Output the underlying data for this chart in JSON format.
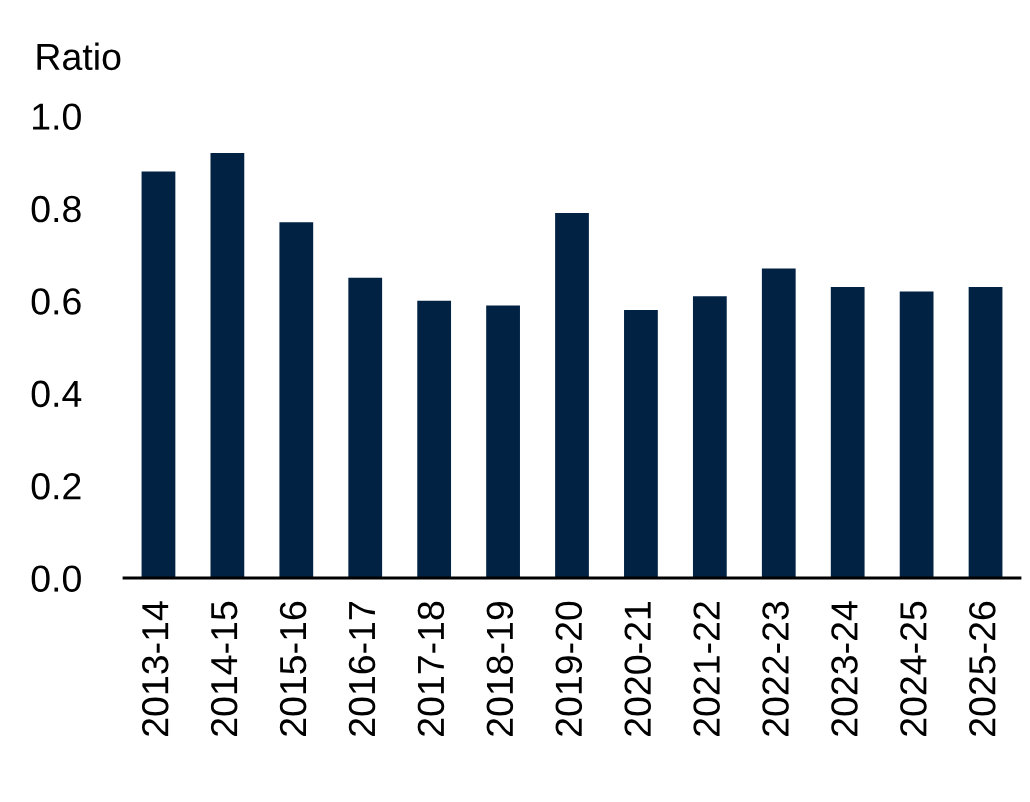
{
  "chart_data": {
    "type": "bar",
    "ylabel": "Ratio",
    "categories": [
      "2013-14",
      "2014-15",
      "2015-16",
      "2016-17",
      "2017-18",
      "2018-19",
      "2019-20",
      "2020-21",
      "2021-22",
      "2022-23",
      "2023-24",
      "2024-25",
      "2025-26"
    ],
    "values": [
      0.88,
      0.92,
      0.77,
      0.65,
      0.6,
      0.59,
      0.79,
      0.58,
      0.61,
      0.67,
      0.63,
      0.62,
      0.63
    ],
    "color": "#022244",
    "ylim": [
      0,
      1.0
    ],
    "yticks": [
      {
        "value": 0,
        "label": "0.0"
      },
      {
        "value": 0.2,
        "label": "0.2"
      },
      {
        "value": 0.4,
        "label": "0.4"
      },
      {
        "value": 0.6,
        "label": "0.6"
      },
      {
        "value": 0.8,
        "label": "0.8"
      },
      {
        "value": 1.0,
        "label": "1.0"
      }
    ]
  }
}
